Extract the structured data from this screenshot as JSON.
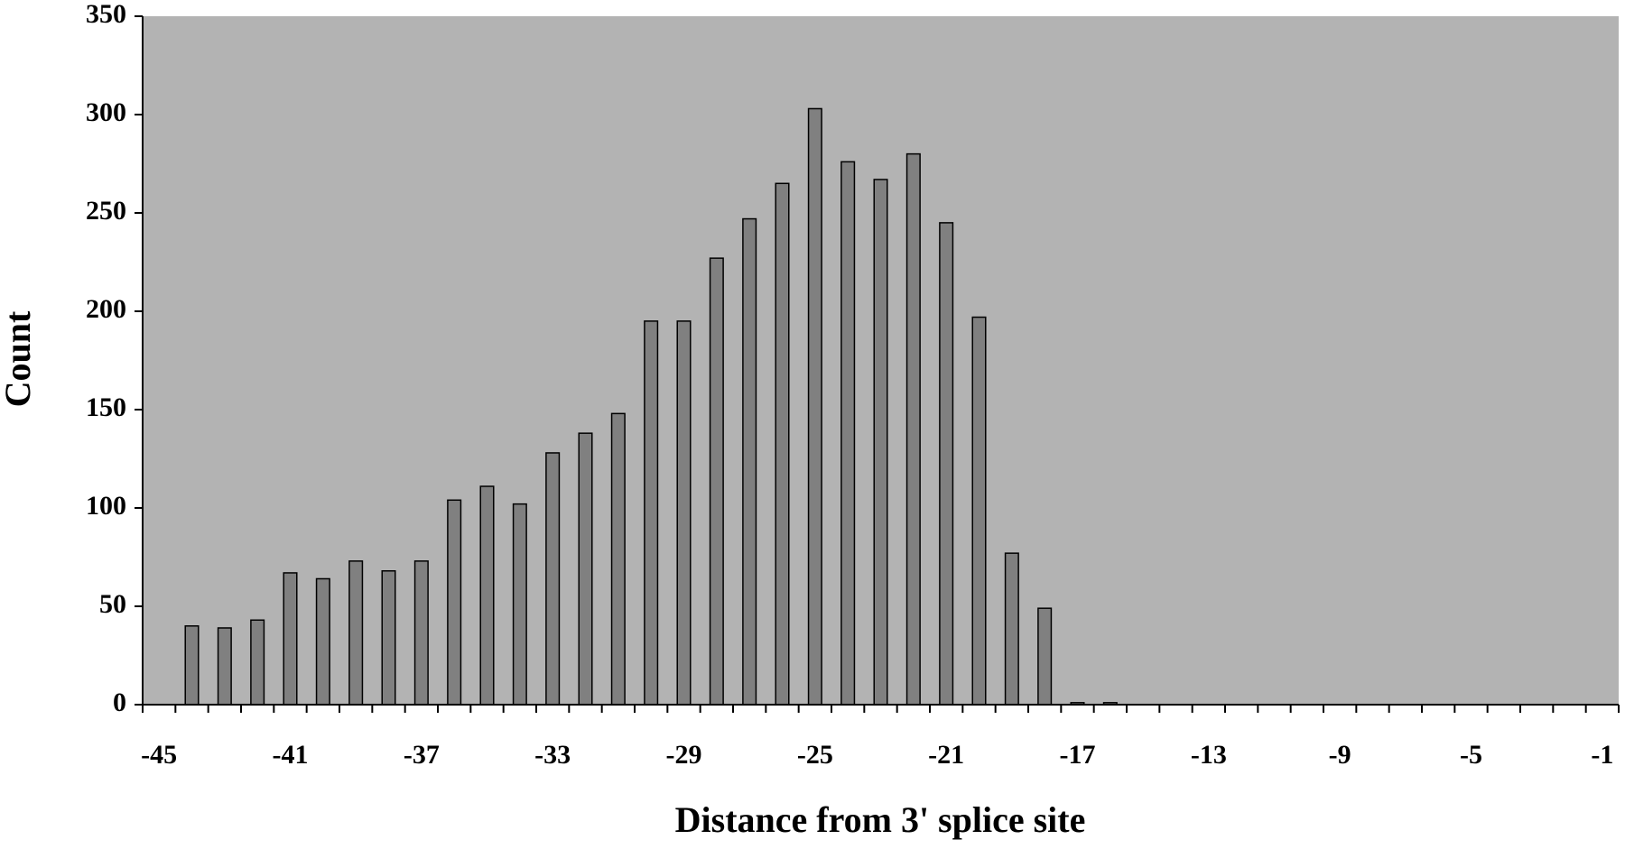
{
  "chart_data": {
    "type": "bar",
    "x_label": "Distance from 3' splice site",
    "y_label": "Count",
    "categories": [
      "-45",
      null,
      null,
      null,
      "-41",
      null,
      null,
      null,
      "-37",
      null,
      null,
      null,
      "-33",
      null,
      null,
      null,
      "-29",
      null,
      null,
      null,
      "-25",
      null,
      null,
      null,
      "-21",
      null,
      null,
      null,
      "-17",
      null,
      null,
      null,
      "-13",
      null,
      null,
      null,
      "-9",
      null,
      null,
      null,
      "-5",
      null,
      null,
      null,
      "-1"
    ],
    "values": [
      0,
      40,
      39,
      43,
      67,
      64,
      73,
      68,
      73,
      104,
      111,
      102,
      128,
      138,
      148,
      195,
      195,
      227,
      247,
      265,
      303,
      276,
      267,
      280,
      245,
      197,
      77,
      49,
      1,
      1,
      0,
      0,
      0,
      0,
      0,
      0,
      0,
      0,
      0,
      0,
      0,
      0,
      0,
      0,
      0
    ],
    "color": "#808080",
    "background": "#b3b3b3",
    "ylim": [
      0,
      350
    ],
    "yticks": [
      0,
      50,
      100,
      150,
      200,
      250,
      300,
      350
    ],
    "grid": false
  }
}
